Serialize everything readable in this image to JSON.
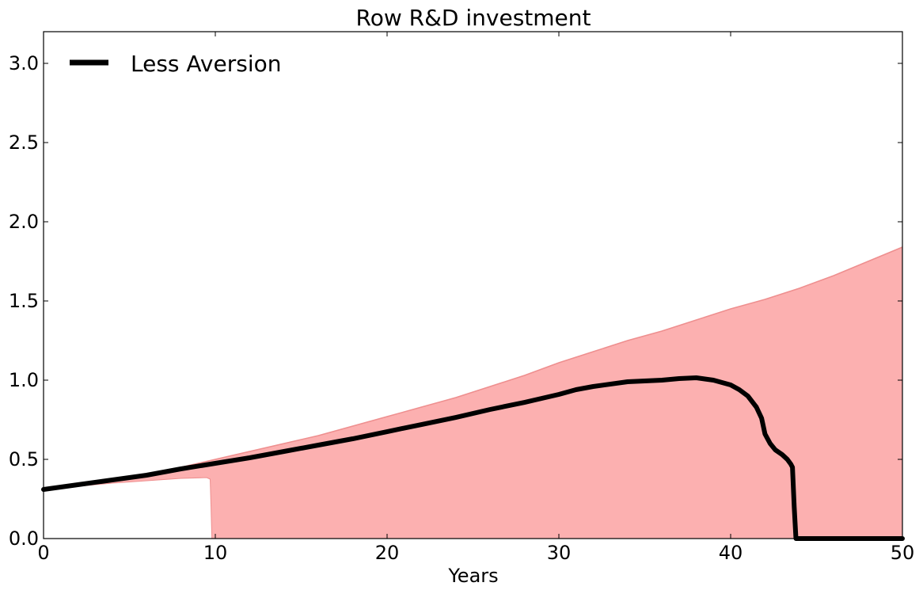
{
  "chart_data": {
    "type": "area",
    "title": "Row R&D investment",
    "xlabel": "Years",
    "ylabel": "",
    "xlim": [
      0,
      50
    ],
    "ylim": [
      0,
      3.2
    ],
    "xticks": [
      0,
      10,
      20,
      30,
      40,
      50
    ],
    "xtick_labels": [
      "0",
      "10",
      "20",
      "30",
      "40",
      "50"
    ],
    "yticks": [
      0.0,
      0.5,
      1.0,
      1.5,
      2.0,
      2.5,
      3.0
    ],
    "ytick_labels": [
      "0.0",
      "0.5",
      "1.0",
      "1.5",
      "2.0",
      "2.5",
      "3.0"
    ],
    "grid": false,
    "legend": {
      "position": "top-left",
      "entries": [
        "Less Aversion"
      ]
    },
    "band": {
      "color": "#fcb0b0",
      "edge_color": "#ee8f8f",
      "upper": {
        "x": [
          0,
          2,
          4,
          6,
          8,
          10,
          12,
          14,
          16,
          18,
          20,
          22,
          24,
          26,
          28,
          30,
          32,
          34,
          36,
          38,
          40,
          42,
          44,
          46,
          48,
          50
        ],
        "y": [
          0.31,
          0.34,
          0.37,
          0.41,
          0.45,
          0.5,
          0.55,
          0.6,
          0.65,
          0.71,
          0.77,
          0.83,
          0.89,
          0.96,
          1.03,
          1.11,
          1.18,
          1.25,
          1.31,
          1.38,
          1.45,
          1.51,
          1.58,
          1.66,
          1.75,
          1.84
        ]
      },
      "lower": {
        "x": [
          0,
          2,
          4,
          6,
          8,
          9.5,
          9.7,
          9.75,
          9.8,
          50
        ],
        "y": [
          0.31,
          0.33,
          0.35,
          0.365,
          0.38,
          0.385,
          0.375,
          0.2,
          0.0,
          0.0
        ]
      }
    },
    "series": [
      {
        "name": "Less Aversion",
        "color": "#000000",
        "x": [
          0,
          2,
          4,
          6,
          8,
          10,
          12,
          14,
          16,
          18,
          20,
          22,
          24,
          26,
          28,
          30,
          31,
          32,
          34,
          36,
          37,
          38,
          39,
          40,
          40.5,
          41,
          41.5,
          41.8,
          42,
          42.3,
          42.6,
          43,
          43.3,
          43.5,
          43.6,
          43.7,
          43.8,
          44,
          50
        ],
        "y": [
          0.31,
          0.34,
          0.37,
          0.4,
          0.44,
          0.475,
          0.51,
          0.55,
          0.59,
          0.63,
          0.675,
          0.72,
          0.765,
          0.815,
          0.86,
          0.91,
          0.94,
          0.96,
          0.99,
          1.0,
          1.01,
          1.015,
          1.0,
          0.97,
          0.94,
          0.9,
          0.83,
          0.76,
          0.66,
          0.6,
          0.56,
          0.53,
          0.5,
          0.47,
          0.45,
          0.2,
          0.0,
          0.0,
          0.0
        ]
      }
    ]
  }
}
